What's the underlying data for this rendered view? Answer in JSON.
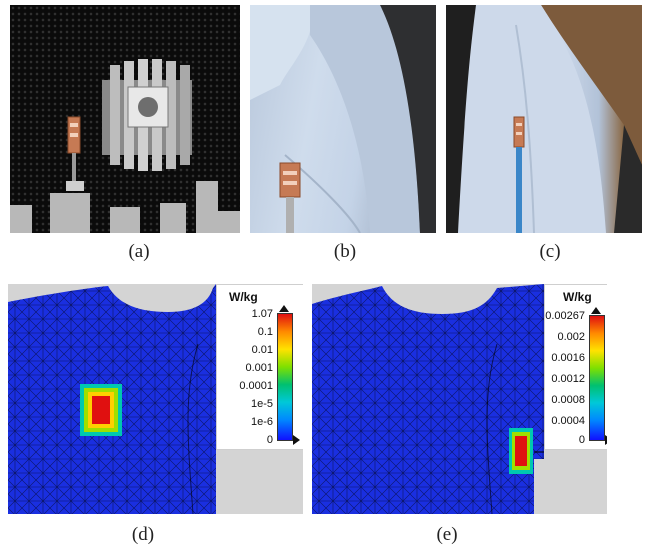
{
  "captions": {
    "a": "(a)",
    "b": "(b)",
    "c": "(c)",
    "d": "(d)",
    "e": "(e)"
  },
  "sar_d": {
    "unit": "W/kg",
    "ticks": [
      "1.07",
      "0.1",
      "0.01",
      "0.001",
      "0.0001",
      "1e-5",
      "1e-6",
      "0"
    ]
  },
  "sar_e": {
    "unit": "W/kg",
    "ticks": [
      "0.00267",
      "0.002",
      "0.0016",
      "0.0012",
      "0.0008",
      "0.0004",
      "0"
    ]
  },
  "colors": {
    "body_mesh": "#1a2fe0",
    "hot": "#e01010",
    "background_sim": "#d4d4d4"
  },
  "icons": {
    "max_marker": "arrow-up-icon",
    "min_marker": "arrow-right-icon",
    "probe": "antenna-tag-icon"
  }
}
